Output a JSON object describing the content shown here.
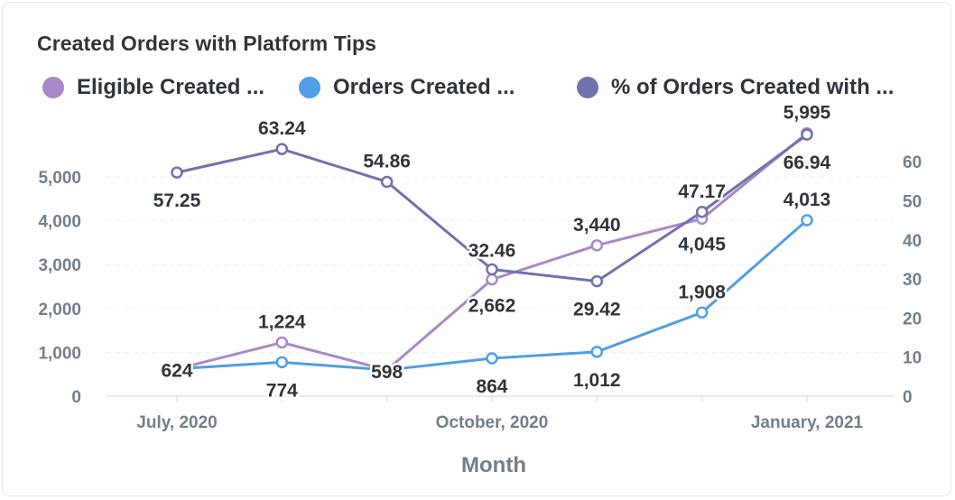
{
  "chart_data": {
    "type": "line",
    "title": "Created Orders with Platform Tips",
    "xlabel": "Month",
    "x": [
      "2020-07",
      "2020-08",
      "2020-09",
      "2020-10",
      "2020-11",
      "2020-12",
      "2021-01"
    ],
    "x_tick_labels": [
      {
        "x": "2020-07",
        "label": "July, 2020"
      },
      {
        "x": "2020-10",
        "label": "October, 2020"
      },
      {
        "x": "2021-01",
        "label": "January, 2021"
      }
    ],
    "y_left": {
      "ticks": [
        0,
        1000,
        2000,
        3000,
        4000,
        5000
      ],
      "tick_labels": [
        "0",
        "1,000",
        "2,000",
        "3,000",
        "4,000",
        "5,000"
      ],
      "range": [
        0,
        5000
      ]
    },
    "y_right": {
      "ticks": [
        0,
        10,
        20,
        30,
        40,
        50,
        60
      ],
      "tick_labels": [
        "0",
        "10",
        "20",
        "30",
        "40",
        "50",
        "60"
      ],
      "range": [
        0,
        60
      ]
    },
    "grid": true,
    "legend_position": "top-left",
    "series": [
      {
        "name": "Eligible Created ...",
        "axis": "left",
        "color": "#a989c5",
        "values": [
          624,
          1224,
          598,
          2662,
          3440,
          4045,
          5995
        ],
        "labels": [
          "624",
          "1,224",
          "598",
          "2,662",
          "3,440",
          "4,045",
          "5,995"
        ]
      },
      {
        "name": "Orders Created ...",
        "axis": "left",
        "color": "#509ee3",
        "values": [
          624,
          774,
          598,
          864,
          1012,
          1908,
          4013
        ],
        "labels": [
          "",
          "774",
          "",
          "864",
          "1,012",
          "1,908",
          "4,013"
        ]
      },
      {
        "name": "% of Orders Created with ...",
        "axis": "right",
        "color": "#7172ad",
        "values": [
          57.25,
          63.24,
          54.86,
          32.46,
          29.42,
          47.17,
          66.94
        ],
        "labels": [
          "57.25",
          "63.24",
          "54.86",
          "32.46",
          "29.42",
          "47.17",
          "66.94"
        ]
      }
    ]
  }
}
